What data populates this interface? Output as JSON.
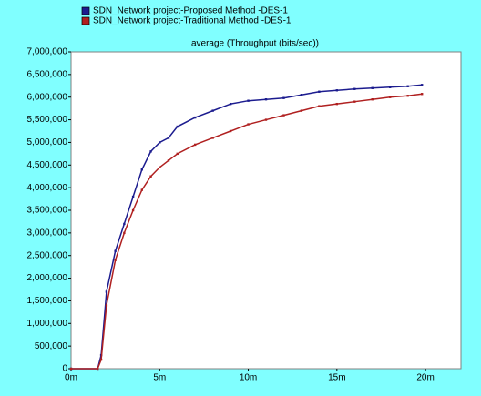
{
  "chart_data": {
    "type": "line",
    "title": "average (Throughput (bits/sec))",
    "x": [
      0,
      1.5,
      1.7,
      2,
      2.5,
      3,
      3.5,
      4,
      4.5,
      5,
      5.5,
      6,
      7,
      8,
      9,
      10,
      11,
      12,
      13,
      14,
      15,
      16,
      17,
      18,
      19,
      19.8
    ],
    "series": [
      {
        "name": "SDN_Network project-Proposed Method -DES-1",
        "color": "#1c1c8f",
        "values": [
          0,
          0,
          300000,
          1700000,
          2600000,
          3200000,
          3800000,
          4400000,
          4800000,
          5000000,
          5100000,
          5350000,
          5550000,
          5700000,
          5850000,
          5920000,
          5950000,
          5980000,
          6050000,
          6120000,
          6150000,
          6180000,
          6200000,
          6220000,
          6240000,
          6270000
        ]
      },
      {
        "name": "SDN_Network project-Traditional Method -DES-1",
        "color": "#b02020",
        "values": [
          0,
          0,
          200000,
          1400000,
          2400000,
          3000000,
          3500000,
          3950000,
          4250000,
          4450000,
          4600000,
          4750000,
          4950000,
          5100000,
          5250000,
          5400000,
          5500000,
          5600000,
          5700000,
          5800000,
          5850000,
          5900000,
          5950000,
          6000000,
          6030000,
          6070000
        ]
      }
    ],
    "xlim": [
      0,
      22
    ],
    "xticks": [
      {
        "value": 0,
        "label": "0m"
      },
      {
        "value": 5,
        "label": "5m"
      },
      {
        "value": 10,
        "label": "10m"
      },
      {
        "value": 15,
        "label": "15m"
      },
      {
        "value": 20,
        "label": "20m"
      }
    ],
    "ylim": [
      0,
      7000000
    ],
    "yticks": [
      0,
      {
        "value": 500000,
        "label": "500,000"
      },
      {
        "value": 1000000,
        "label": "1,000,000"
      },
      {
        "value": 1500000,
        "label": "1,500,000"
      },
      {
        "value": 2000000,
        "label": "2,000,000"
      },
      {
        "value": 2500000,
        "label": "2,500,000"
      },
      {
        "value": 3000000,
        "label": "3,000,000"
      },
      {
        "value": 3500000,
        "label": "3,500,000"
      },
      {
        "value": 4000000,
        "label": "4,000,000"
      },
      {
        "value": 4500000,
        "label": "4,500,000"
      },
      {
        "value": 5000000,
        "label": "5,000,000"
      },
      {
        "value": 5500000,
        "label": "5,500,000"
      },
      {
        "value": 6000000,
        "label": "6,000,000"
      },
      {
        "value": 6500000,
        "label": "6,500,000"
      },
      {
        "value": 7000000,
        "label": "7,000,000"
      }
    ]
  }
}
